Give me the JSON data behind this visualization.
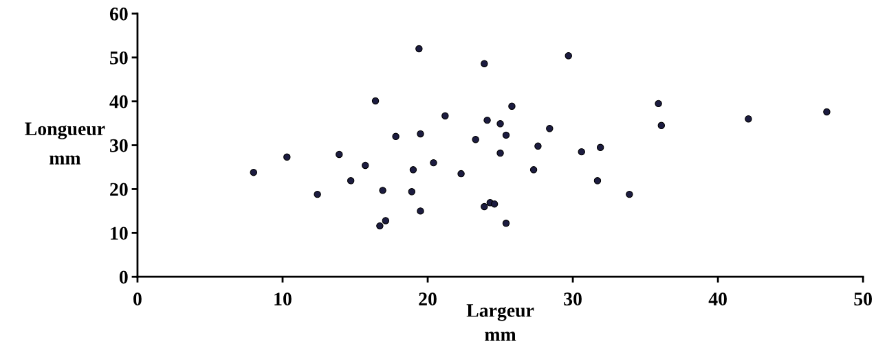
{
  "chart_data": {
    "type": "scatter",
    "xlabel": "Largeur\nmm",
    "ylabel": "Longueur\nmm",
    "x": [
      19.4,
      29.7,
      23.9,
      16.4,
      25.8,
      35.9,
      47.5,
      42.1,
      36.1,
      21.2,
      24.1,
      25.0,
      28.4,
      19.5,
      25.4,
      17.8,
      23.3,
      27.6,
      31.9,
      30.6,
      25.0,
      13.9,
      10.3,
      20.4,
      15.7,
      19.0,
      27.3,
      8.0,
      22.3,
      14.7,
      31.7,
      16.9,
      18.9,
      12.4,
      33.9,
      24.3,
      24.6,
      23.9,
      19.5,
      17.1,
      16.7,
      25.4
    ],
    "series": [
      {
        "color": "#1c1c40",
        "values": [
          52.0,
          50.4,
          48.6,
          40.1,
          38.9,
          39.5,
          37.6,
          36.0,
          34.5,
          36.7,
          35.7,
          34.9,
          33.8,
          32.6,
          32.3,
          32.0,
          31.3,
          29.8,
          29.5,
          28.5,
          28.2,
          27.9,
          27.3,
          26.0,
          25.4,
          24.4,
          24.4,
          23.8,
          23.5,
          21.9,
          21.9,
          19.7,
          19.4,
          18.8,
          18.8,
          16.9,
          16.6,
          16.0,
          15.0,
          12.8,
          11.6,
          12.2
        ]
      }
    ],
    "xlim": [
      0,
      50
    ],
    "xticks": [
      0,
      10,
      20,
      30,
      40,
      50
    ],
    "ylim": [
      0,
      60
    ],
    "yticks": [
      0,
      10,
      20,
      30,
      40,
      50,
      60
    ],
    "marker": "circle",
    "grid": false,
    "legend": false
  }
}
